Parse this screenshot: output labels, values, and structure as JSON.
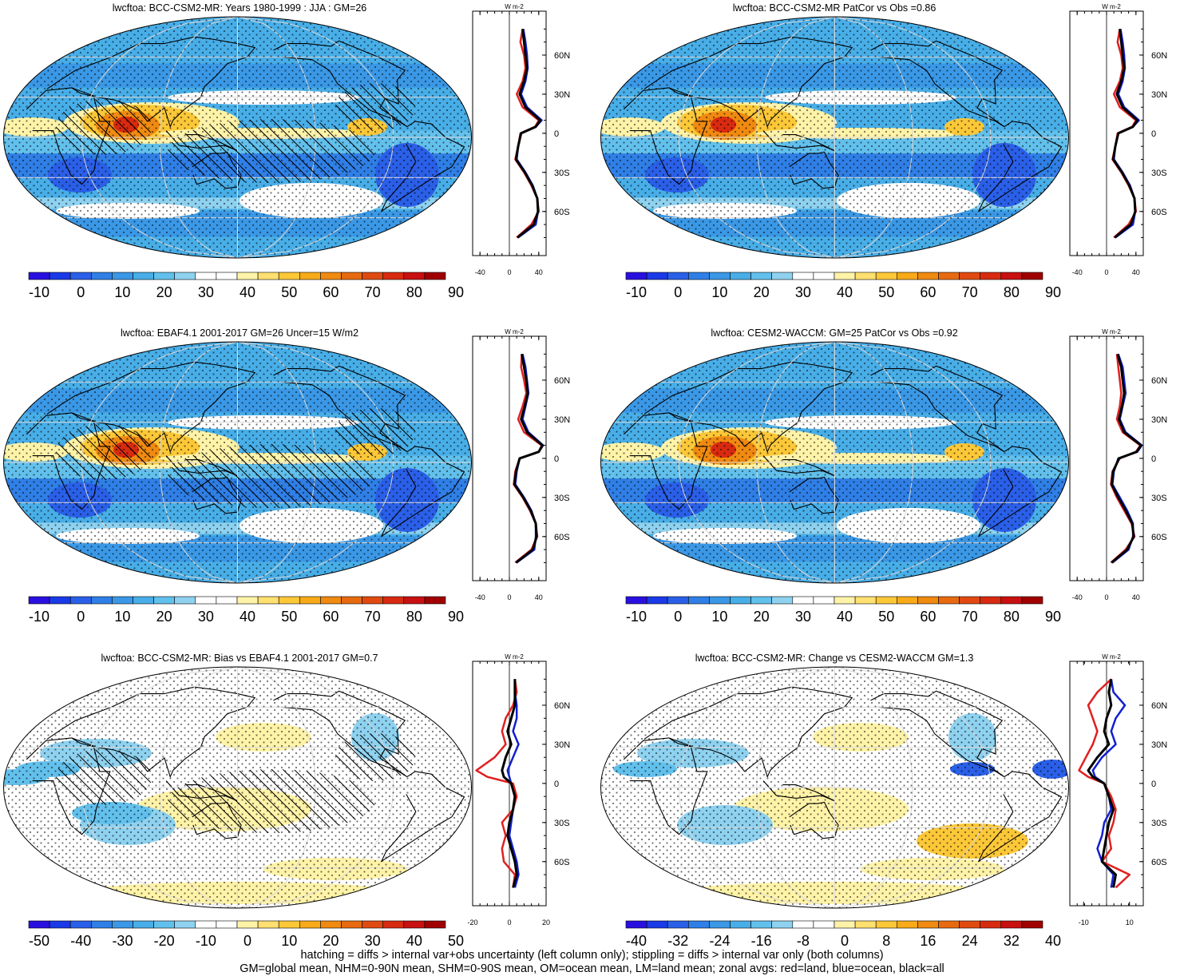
{
  "colors": {
    "land": "#e02020",
    "ocean": "#1020d0",
    "all": "#000000"
  },
  "panels": [
    {
      "id": "model-clim",
      "title": "lwcftoa: BCC-CSM2-MR: Years 1980-1999 : JJA : GM=26",
      "type": "climatology",
      "hatching": true,
      "stippling": true,
      "colorbar": {
        "labels": [
          "-10",
          "0",
          "10",
          "20",
          "30",
          "40",
          "50",
          "60",
          "70",
          "80",
          "90"
        ],
        "colors": [
          "#2a10e0",
          "#1a3ae8",
          "#2a5fe8",
          "#2f7fe6",
          "#3a98e6",
          "#48aee8",
          "#62c0ec",
          "#8ed2f0",
          "#ffffff",
          "#ffffff",
          "#fff3a8",
          "#ffe070",
          "#fcc838",
          "#f8aa18",
          "#f08a10",
          "#e86a10",
          "#e04a10",
          "#d82a10",
          "#c81010",
          "#a00000"
        ]
      },
      "zonal": {
        "xlim": [
          -50,
          50
        ],
        "xticks": [
          "-40",
          "0",
          "40"
        ],
        "unit": "W m-2",
        "lat_labels": [
          "60N",
          "30N",
          "0",
          "30S",
          "60S"
        ]
      },
      "chart_data": {
        "type": "line",
        "x_label": "W m-2",
        "lat": [
          80,
          70,
          60,
          50,
          40,
          30,
          20,
          10,
          5,
          0,
          -10,
          -20,
          -30,
          -40,
          -50,
          -60,
          -70,
          -80
        ],
        "series": [
          {
            "name": "land",
            "values": [
              18,
              15,
              20,
              22,
              18,
              10,
              18,
              40,
              35,
              15,
              12,
              8,
              20,
              30,
              38,
              40,
              30,
              10
            ]
          },
          {
            "name": "ocean",
            "values": [
              19,
              22,
              24,
              25,
              22,
              16,
              24,
              44,
              36,
              16,
              12,
              10,
              22,
              32,
              38,
              39,
              36,
              12
            ]
          },
          {
            "name": "all",
            "values": [
              18,
              20,
              22,
              24,
              20,
              14,
              22,
              42,
              36,
              16,
              12,
              9,
              21,
              31,
              38,
              39,
              33,
              11
            ]
          }
        ]
      }
    },
    {
      "id": "model-patcor",
      "title": "lwcftoa: BCC-CSM2-MR PatCor vs Obs =0.86",
      "type": "climatology",
      "hatching": false,
      "stippling": true,
      "colorbar": {
        "labels": [
          "-10",
          "0",
          "10",
          "20",
          "30",
          "40",
          "50",
          "60",
          "70",
          "80",
          "90"
        ],
        "colors": [
          "#2a10e0",
          "#1a3ae8",
          "#2a5fe8",
          "#2f7fe6",
          "#3a98e6",
          "#48aee8",
          "#62c0ec",
          "#8ed2f0",
          "#ffffff",
          "#ffffff",
          "#fff3a8",
          "#ffe070",
          "#fcc838",
          "#f8aa18",
          "#f08a10",
          "#e86a10",
          "#e04a10",
          "#d82a10",
          "#c81010",
          "#a00000"
        ]
      },
      "zonal": {
        "xlim": [
          -50,
          50
        ],
        "xticks": [
          "-40",
          "0",
          "40"
        ],
        "unit": "W m-2",
        "lat_labels": [
          "60N",
          "30N",
          "0",
          "30S",
          "60S"
        ]
      },
      "chart_data": {
        "type": "line",
        "x_label": "W m-2",
        "lat": [
          80,
          70,
          60,
          50,
          40,
          30,
          20,
          10,
          5,
          0,
          -10,
          -20,
          -30,
          -40,
          -50,
          -60,
          -70,
          -80
        ],
        "series": [
          {
            "name": "land",
            "values": [
              18,
              15,
              20,
              22,
              18,
              10,
              18,
              40,
              35,
              15,
              12,
              8,
              20,
              30,
              38,
              40,
              30,
              10
            ]
          },
          {
            "name": "ocean",
            "values": [
              19,
              22,
              24,
              25,
              22,
              16,
              24,
              44,
              36,
              16,
              12,
              10,
              22,
              32,
              38,
              39,
              36,
              12
            ]
          },
          {
            "name": "all",
            "values": [
              18,
              20,
              22,
              24,
              20,
              14,
              22,
              42,
              36,
              16,
              12,
              9,
              21,
              31,
              38,
              39,
              33,
              11
            ]
          }
        ]
      }
    },
    {
      "id": "obs-clim",
      "title": "lwcftoa: EBAF4.1 2001-2017 GM=26 Uncer=15 W/m2",
      "type": "climatology",
      "hatching": true,
      "stippling": true,
      "colorbar": {
        "labels": [
          "-10",
          "0",
          "10",
          "20",
          "30",
          "40",
          "50",
          "60",
          "70",
          "80",
          "90"
        ],
        "colors": [
          "#2a10e0",
          "#1a3ae8",
          "#2a5fe8",
          "#2f7fe6",
          "#3a98e6",
          "#48aee8",
          "#62c0ec",
          "#8ed2f0",
          "#ffffff",
          "#ffffff",
          "#fff3a8",
          "#ffe070",
          "#fcc838",
          "#f8aa18",
          "#f08a10",
          "#e86a10",
          "#e04a10",
          "#d82a10",
          "#c81010",
          "#a00000"
        ]
      },
      "zonal": {
        "xlim": [
          -50,
          50
        ],
        "xticks": [
          "-40",
          "0",
          "40"
        ],
        "unit": "W m-2",
        "lat_labels": [
          "60N",
          "30N",
          "0",
          "30S",
          "60S"
        ]
      },
      "chart_data": {
        "type": "line",
        "x_label": "W m-2",
        "lat": [
          80,
          70,
          60,
          50,
          40,
          30,
          20,
          10,
          5,
          0,
          -10,
          -20,
          -30,
          -40,
          -50,
          -60,
          -70,
          -80
        ],
        "series": [
          {
            "name": "land",
            "values": [
              17,
              16,
              20,
              23,
              18,
              12,
              20,
              44,
              40,
              14,
              8,
              6,
              18,
              28,
              36,
              38,
              30,
              8
            ]
          },
          {
            "name": "ocean",
            "values": [
              18,
              22,
              24,
              26,
              22,
              18,
              26,
              46,
              40,
              14,
              10,
              8,
              20,
              30,
              36,
              36,
              34,
              10
            ]
          },
          {
            "name": "all",
            "values": [
              17,
              20,
              23,
              25,
              21,
              16,
              24,
              45,
              40,
              14,
              9,
              7,
              19,
              29,
              36,
              37,
              32,
              9
            ]
          }
        ]
      }
    },
    {
      "id": "cesm-clim",
      "title": "lwcftoa: CESM2-WACCM: GM=25 PatCor vs Obs =0.92",
      "type": "climatology",
      "hatching": false,
      "stippling": true,
      "colorbar": {
        "labels": [
          "-10",
          "0",
          "10",
          "20",
          "30",
          "40",
          "50",
          "60",
          "70",
          "80",
          "90"
        ],
        "colors": [
          "#2a10e0",
          "#1a3ae8",
          "#2a5fe8",
          "#2f7fe6",
          "#3a98e6",
          "#48aee8",
          "#62c0ec",
          "#8ed2f0",
          "#ffffff",
          "#ffffff",
          "#fff3a8",
          "#ffe070",
          "#fcc838",
          "#f8aa18",
          "#f08a10",
          "#e86a10",
          "#e04a10",
          "#d82a10",
          "#c81010",
          "#a00000"
        ]
      },
      "zonal": {
        "xlim": [
          -50,
          50
        ],
        "xticks": [
          "-40",
          "0",
          "40"
        ],
        "unit": "W m-2",
        "lat_labels": [
          "60N",
          "30N",
          "0",
          "30S",
          "60S"
        ]
      },
      "chart_data": {
        "type": "line",
        "x_label": "W m-2",
        "lat": [
          80,
          70,
          60,
          50,
          40,
          30,
          20,
          10,
          5,
          0,
          -10,
          -20,
          -30,
          -40,
          -50,
          -60,
          -70,
          -80
        ],
        "series": [
          {
            "name": "land",
            "values": [
              14,
              16,
              18,
              20,
              18,
              14,
              22,
              46,
              40,
              18,
              8,
              6,
              14,
              24,
              34,
              38,
              26,
              6
            ]
          },
          {
            "name": "ocean",
            "values": [
              16,
              22,
              24,
              26,
              22,
              18,
              26,
              48,
              42,
              16,
              10,
              8,
              18,
              28,
              36,
              36,
              30,
              8
            ]
          },
          {
            "name": "all",
            "values": [
              15,
              20,
              22,
              24,
              21,
              17,
              24,
              47,
              41,
              17,
              9,
              7,
              16,
              26,
              35,
              37,
              28,
              7
            ]
          }
        ]
      }
    },
    {
      "id": "bias-obs",
      "title": "lwcftoa: BCC-CSM2-MR: Bias vs EBAF4.1 2001-2017 GM=0.7",
      "type": "bias",
      "hatching": true,
      "stippling": true,
      "colorbar": {
        "labels": [
          "-50",
          "-40",
          "-30",
          "-20",
          "-10",
          "0",
          "10",
          "20",
          "30",
          "40",
          "50"
        ],
        "colors": [
          "#2a10e0",
          "#1a3ae8",
          "#2a5fe8",
          "#2f7fe6",
          "#3a98e6",
          "#48aee8",
          "#62c0ec",
          "#8ed2f0",
          "#ffffff",
          "#ffffff",
          "#fff3a8",
          "#ffe070",
          "#fcc838",
          "#f8aa18",
          "#f08a10",
          "#e86a10",
          "#e04a10",
          "#d82a10",
          "#c81010",
          "#a00000"
        ]
      },
      "zonal": {
        "xlim": [
          -20,
          20
        ],
        "xticks": [
          "-20",
          "0",
          "20"
        ],
        "unit": "W m-2",
        "lat_labels": [
          "60N",
          "30N",
          "0",
          "30S",
          "60S"
        ]
      },
      "chart_data": {
        "type": "line",
        "x_label": "W m-2",
        "lat": [
          80,
          70,
          60,
          50,
          40,
          30,
          20,
          10,
          5,
          0,
          -10,
          -20,
          -30,
          -40,
          -50,
          -60,
          -70,
          -80
        ],
        "series": [
          {
            "name": "land",
            "values": [
              3,
              4,
              2,
              -2,
              -4,
              -2,
              -8,
              -18,
              -12,
              2,
              4,
              2,
              -4,
              -2,
              -4,
              -3,
              3,
              2
            ]
          },
          {
            "name": "ocean",
            "values": [
              3,
              3,
              4,
              4,
              2,
              5,
              2,
              -1,
              0,
              1,
              3,
              2,
              1,
              0,
              2,
              4,
              5,
              3
            ]
          },
          {
            "name": "all",
            "values": [
              3,
              3,
              3,
              1,
              -1,
              1,
              -2,
              -4,
              -3,
              1,
              3,
              2,
              0,
              -1,
              1,
              3,
              4,
              2
            ]
          }
        ]
      }
    },
    {
      "id": "change-cesm",
      "title": "lwcftoa: BCC-CSM2-MR: Change vs CESM2-WACCM GM=1.3",
      "type": "change",
      "hatching": false,
      "stippling": true,
      "colorbar": {
        "labels": [
          "-40",
          "-32",
          "-24",
          "-16",
          "-8",
          "0",
          "8",
          "16",
          "24",
          "32",
          "40"
        ],
        "colors": [
          "#2a10e0",
          "#1a3ae8",
          "#2a5fe8",
          "#2f7fe6",
          "#3a98e6",
          "#48aee8",
          "#62c0ec",
          "#8ed2f0",
          "#ffffff",
          "#ffffff",
          "#fff3a8",
          "#ffe070",
          "#fcc838",
          "#f8aa18",
          "#f08a10",
          "#e86a10",
          "#e04a10",
          "#d82a10",
          "#c81010",
          "#a00000"
        ]
      },
      "zonal": {
        "xlim": [
          -16,
          16
        ],
        "xticks": [
          "-10",
          "10"
        ],
        "unit": "W m-2",
        "lat_labels": [
          "60N",
          "30N",
          "0",
          "30S",
          "60S"
        ]
      },
      "chart_data": {
        "type": "line",
        "x_label": "W m-2",
        "lat": [
          80,
          70,
          60,
          50,
          40,
          30,
          20,
          10,
          5,
          0,
          -10,
          -20,
          -30,
          -40,
          -50,
          -60,
          -70,
          -80
        ],
        "series": [
          {
            "name": "land",
            "values": [
              2,
              -4,
              -8,
              -6,
              -4,
              -6,
              -9,
              -12,
              -8,
              -1,
              2,
              4,
              3,
              1,
              2,
              -2,
              10,
              4
            ]
          },
          {
            "name": "ocean",
            "values": [
              2,
              3,
              8,
              4,
              2,
              4,
              -2,
              -6,
              -5,
              -1,
              1,
              2,
              -1,
              -2,
              -4,
              -2,
              3,
              2
            ]
          },
          {
            "name": "all",
            "values": [
              2,
              1,
              2,
              0,
              -1,
              1,
              -4,
              -8,
              -6,
              -1,
              1,
              3,
              1,
              0,
              -1,
              -2,
              4,
              3
            ]
          }
        ]
      }
    }
  ],
  "footer": {
    "line1": "hatching = diffs > internal var+obs uncertainty (left column only); stippling = diffs > internal var only (both columns)",
    "line2": "GM=global mean, NHM=0-90N mean, SHM=0-90S mean, OM=ocean mean, LM=land mean; zonal avgs: red=land, blue=ocean, black=all"
  }
}
